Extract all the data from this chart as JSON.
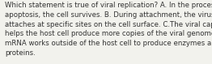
{
  "lines": [
    "Which statement is true of viral replication? A. In the process of",
    "apoptosis, the cell survives. B. During attachment, the virus",
    "attaches at specific sites on the cell surface. C.The viral capsid",
    "helps the host cell produce more copies of the viral genome. D.",
    "mRNA works outside of the host cell to produce enzymes and",
    "proteins."
  ],
  "font_size": 6.2,
  "font_color": "#333333",
  "background_color": "#f2f2ed",
  "fig_width": 2.62,
  "fig_height": 0.79,
  "dpi": 100
}
